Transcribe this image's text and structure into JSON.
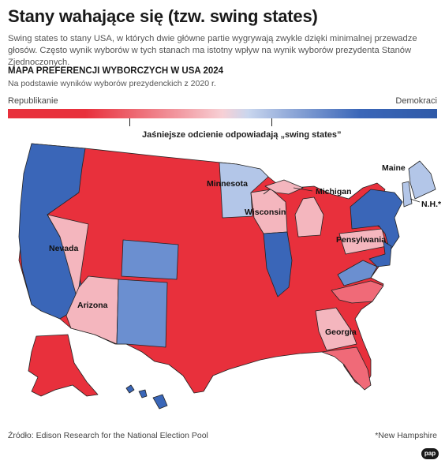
{
  "title": "Stany wahające się (tzw. swing states)",
  "subtitle": "Swing states to stany USA, w których dwie główne partie wygrywają zwykle dzięki minimalnej przewadze głosów. Często wynik wyborów w tych stanach ma istotny wpływ na wynik wyborów prezydenta Stanów Zjednoczonych.",
  "map_title": "MAPA PREFERENCJI WYBORCZYCH W USA 2024",
  "basis": "Na podstawie wyników wyborów prezydenckich z 2020 r.",
  "legend": {
    "left_label": "Republikanie",
    "right_label": "Demokraci",
    "note": "Jaśniejsze odcienie odpowiadają „swing states”"
  },
  "colors": {
    "solid_rep": "#e8303c",
    "lean_rep": "#f06a78",
    "swing_rep": "#f4b6be",
    "swing_dem": "#b3c6e8",
    "lean_dem": "#6b8fd0",
    "solid_dem": "#3a66b8"
  },
  "state_labels": {
    "minnesota": "Minnesota",
    "michigan": "Michigan",
    "wisconsin": "Wisconsin",
    "maine": "Maine",
    "nh": "N.H.*",
    "nevada": "Nevada",
    "pensylwania": "Pensylwania",
    "arizona": "Arizona",
    "georgia": "Georgia"
  },
  "source": "Źródło: Edison Research for the National Election Pool",
  "footnote": "*New Hampshire",
  "logo": "pap"
}
